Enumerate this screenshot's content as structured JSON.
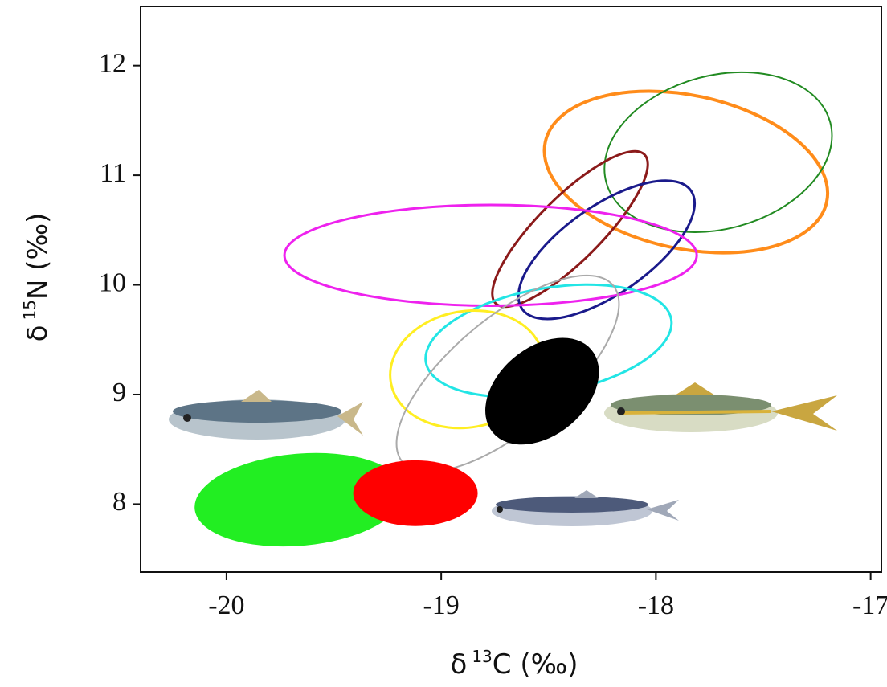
{
  "chart_data": {
    "type": "ellipse",
    "x_label": {
      "prefix": "δ",
      "sup": "13",
      "suffix": "C (‰)"
    },
    "y_label": {
      "prefix": "δ",
      "sup": "15",
      "suffix": "N (‰)"
    },
    "xlim": [
      -20.4,
      -16.95
    ],
    "ylim": [
      7.38,
      12.54
    ],
    "xticks": [
      -20,
      -19,
      -18,
      -17
    ],
    "yticks": [
      8,
      9,
      10,
      11,
      12
    ],
    "series": [
      {
        "color": "#ff8c1a",
        "filled": false,
        "stroke_width": 4,
        "cx": -17.86,
        "cy": 11.03,
        "rx": 0.67,
        "ry": 0.7,
        "angle": 12
      },
      {
        "color": "#228b22",
        "filled": false,
        "stroke_width": 2,
        "cx": -17.71,
        "cy": 11.21,
        "rx": 0.54,
        "ry": 0.7,
        "angle": -15
      },
      {
        "color": "#8b1a1a",
        "filled": false,
        "stroke_width": 3,
        "cx": -18.4,
        "cy": 10.51,
        "rx": 0.49,
        "ry": 0.29,
        "angle": -45
      },
      {
        "color": "#1a1a8b",
        "filled": false,
        "stroke_width": 3,
        "cx": -18.23,
        "cy": 10.32,
        "rx": 0.48,
        "ry": 0.4,
        "angle": -35
      },
      {
        "color": "#ee22ee",
        "filled": false,
        "stroke_width": 3,
        "cx": -18.77,
        "cy": 10.27,
        "rx": 0.96,
        "ry": 0.46,
        "angle": 0
      },
      {
        "color": "#22e5e5",
        "filled": false,
        "stroke_width": 3,
        "cx": -18.5,
        "cy": 9.49,
        "rx": 0.58,
        "ry": 0.48,
        "angle": -10
      },
      {
        "color": "#ffee22",
        "filled": false,
        "stroke_width": 3,
        "cx": -18.88,
        "cy": 9.23,
        "rx": 0.36,
        "ry": 0.53,
        "angle": -10
      },
      {
        "color": "#aaaaaa",
        "filled": false,
        "stroke_width": 2,
        "cx": -18.69,
        "cy": 9.19,
        "rx": 0.64,
        "ry": 0.51,
        "angle": -40
      },
      {
        "color": "#000000",
        "filled": true,
        "stroke_width": 0,
        "cx": -18.53,
        "cy": 9.03,
        "rx": 0.3,
        "ry": 0.4,
        "angle": -40
      },
      {
        "color": "#22ee22",
        "filled": true,
        "stroke_width": 0,
        "cx": -19.66,
        "cy": 8.04,
        "rx": 0.49,
        "ry": 0.42,
        "angle": -5
      },
      {
        "color": "#ff0000",
        "filled": true,
        "stroke_width": 0,
        "cx": -19.12,
        "cy": 8.1,
        "rx": 0.29,
        "ry": 0.3,
        "angle": 0
      }
    ]
  }
}
